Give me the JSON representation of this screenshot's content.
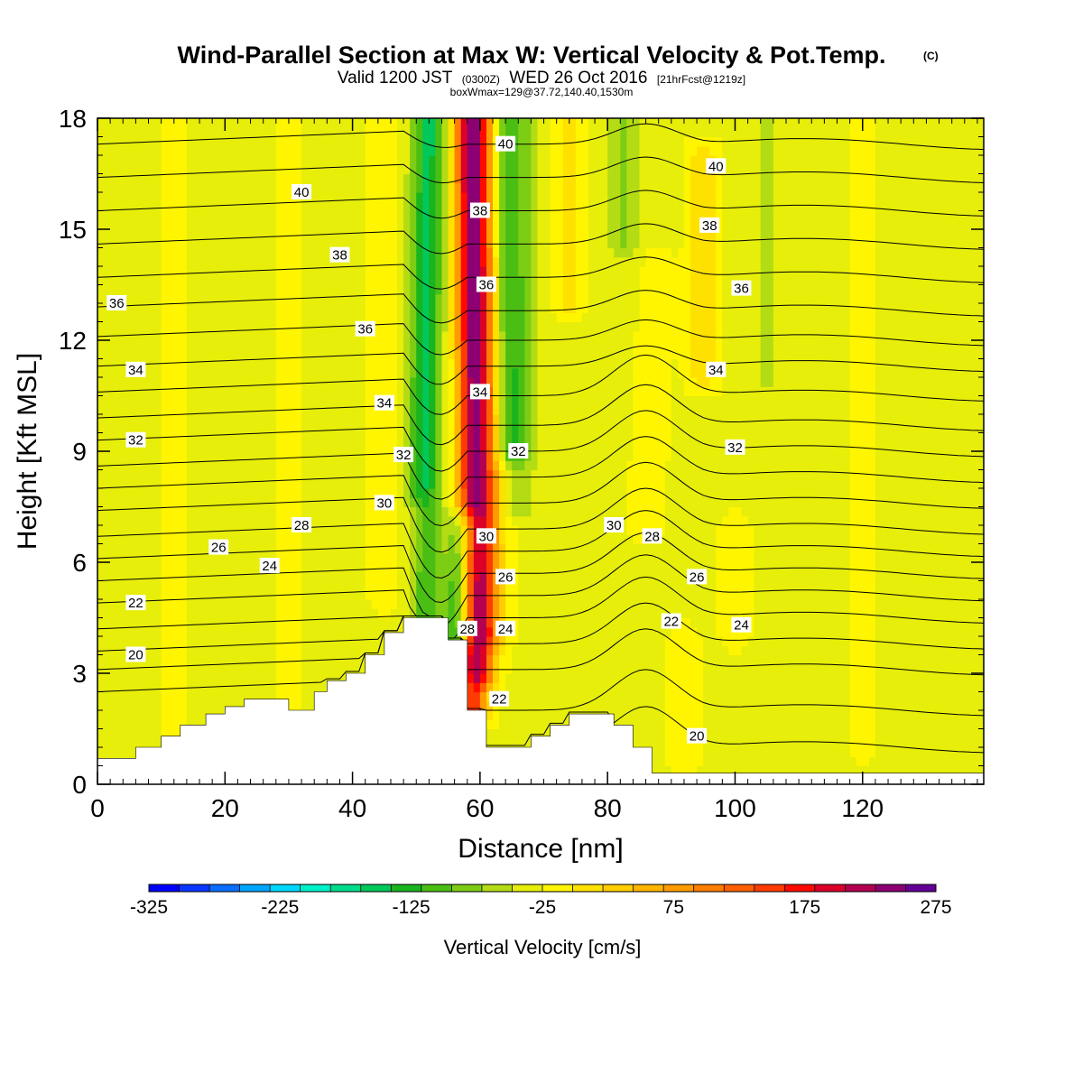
{
  "header": {
    "title": "Wind-Parallel Section at Max W: Vertical Velocity & Pot.Temp.",
    "copyright": "(C)",
    "valid_prefix": "Valid 1200 JST",
    "valid_utc": "(0300Z)",
    "valid_date": "WED 26 Oct 2016",
    "forecast": "[21hrFcst@1219z]",
    "box_info": "boxWmax=129@37.72,140.40,1530m"
  },
  "chart_data": {
    "type": "heatmap",
    "title": "Wind-Parallel Section at Max W: Vertical Velocity & Pot.Temp.",
    "xlabel": "Distance [nm]",
    "ylabel": "Height [Kft MSL]",
    "xlim": [
      0,
      139
    ],
    "ylim": [
      0,
      18
    ],
    "x_ticks": [
      0,
      20,
      40,
      60,
      80,
      100,
      120
    ],
    "y_ticks": [
      0,
      3,
      6,
      9,
      12,
      15,
      18
    ],
    "grid": false,
    "colorbar": {
      "title": "Vertical Velocity [cm/s]",
      "orientation": "horizontal",
      "tick_values": [
        -325,
        -225,
        -125,
        -25,
        75,
        175,
        275
      ],
      "min": -325,
      "max": 275,
      "step": 25,
      "colors": [
        "#0000ff",
        "#0a37ff",
        "#0a6eff",
        "#00a5ff",
        "#00d8ff",
        "#00f0c8",
        "#00dc8c",
        "#00c85a",
        "#19b41e",
        "#4bbe14",
        "#7dcd14",
        "#b4dc14",
        "#e6ee0a",
        "#fff500",
        "#ffe100",
        "#ffcd00",
        "#ffb400",
        "#ff9b00",
        "#ff7d00",
        "#ff5f00",
        "#ff3c00",
        "#ff0a00",
        "#dc0028",
        "#b40050",
        "#8c0073",
        "#640096"
      ]
    },
    "terrain": [
      [
        0,
        0.7
      ],
      [
        6,
        0.7
      ],
      [
        6,
        1.0
      ],
      [
        10,
        1.0
      ],
      [
        10,
        1.3
      ],
      [
        13,
        1.3
      ],
      [
        13,
        1.6
      ],
      [
        17,
        1.6
      ],
      [
        17,
        1.9
      ],
      [
        20,
        1.9
      ],
      [
        20,
        2.1
      ],
      [
        23,
        2.1
      ],
      [
        23,
        2.3
      ],
      [
        30,
        2.3
      ],
      [
        30,
        2.0
      ],
      [
        34,
        2.0
      ],
      [
        34,
        2.5
      ],
      [
        36,
        2.5
      ],
      [
        36,
        2.8
      ],
      [
        39,
        2.8
      ],
      [
        39,
        3.0
      ],
      [
        42,
        3.0
      ],
      [
        42,
        3.5
      ],
      [
        45,
        3.5
      ],
      [
        45,
        4.1
      ],
      [
        48,
        4.1
      ],
      [
        48,
        4.5
      ],
      [
        55,
        4.5
      ],
      [
        55,
        3.9
      ],
      [
        58,
        3.9
      ],
      [
        58,
        2.0
      ],
      [
        61,
        2.0
      ],
      [
        61,
        1.0
      ],
      [
        68,
        1.0
      ],
      [
        68,
        1.3
      ],
      [
        71,
        1.3
      ],
      [
        71,
        1.6
      ],
      [
        74,
        1.6
      ],
      [
        74,
        1.9
      ],
      [
        81,
        1.9
      ],
      [
        81,
        1.6
      ],
      [
        84,
        1.6
      ],
      [
        84,
        1.0
      ],
      [
        87,
        1.0
      ],
      [
        87,
        0.3
      ],
      [
        139,
        0.3
      ]
    ],
    "velocity_field": {
      "background": -5,
      "features": [
        {
          "x": 51.5,
          "x_top": 52.5,
          "y_min": 4.0,
          "y_max": 18,
          "value": -90
        },
        {
          "x": 50.0,
          "x_top": 51.0,
          "y_min": 8.0,
          "y_max": 18,
          "value": -50
        },
        {
          "x": 56.5,
          "x_top": 57.5,
          "y_min": 3.9,
          "y_max": 7.0,
          "value": -140
        },
        {
          "x": 59.0,
          "x_top": 58.0,
          "y_min": 2.0,
          "y_max": 18,
          "value": 190
        },
        {
          "x": 60.5,
          "x_top": 59.5,
          "y_min": 3.0,
          "y_max": 18,
          "value": 120
        },
        {
          "x": 62.0,
          "x_top": 61.0,
          "y_min": 4.0,
          "y_max": 18,
          "value": 65
        },
        {
          "x": 64.5,
          "x_top": 64.0,
          "y_min": 9.0,
          "y_max": 18,
          "value": -90
        },
        {
          "x": 66.5,
          "x_top": 67.5,
          "y_min": 7.5,
          "y_max": 18,
          "value": -40
        },
        {
          "x": 74.0,
          "x_top": 74.0,
          "y_min": 13.0,
          "y_max": 18,
          "value": 40
        },
        {
          "x": 82.5,
          "x_top": 82.5,
          "y_min": 14.5,
          "y_max": 18,
          "value": -50
        },
        {
          "x": 86.0,
          "x_top": 88.0,
          "y_min": 7.0,
          "y_max": 14.0,
          "value": 30
        },
        {
          "x": 95.0,
          "x_top": 95.0,
          "y_min": 11.0,
          "y_max": 17.0,
          "value": 50
        },
        {
          "x": 105.0,
          "x_top": 105.0,
          "y_min": 11.0,
          "y_max": 18,
          "value": -30
        },
        {
          "x": 100.0,
          "x_top": 100.0,
          "y_min": 4.0,
          "y_max": 7.0,
          "value": 20
        },
        {
          "x": 12.0,
          "x_top": 12.0,
          "y_min": 0.5,
          "y_max": 18,
          "value": 15
        },
        {
          "x": 30.0,
          "x_top": 30.0,
          "y_min": 0.5,
          "y_max": 18,
          "value": 15
        },
        {
          "x": 45.0,
          "x_top": 45.0,
          "y_min": 5.0,
          "y_max": 18,
          "value": 20
        },
        {
          "x": 92.0,
          "x_top": 92.0,
          "y_min": 0.5,
          "y_max": 4.0,
          "value": 20
        },
        {
          "x": 120.0,
          "x_top": 120.0,
          "y_min": 1.0,
          "y_max": 18,
          "value": 15
        }
      ]
    },
    "theta_contours": {
      "levels": [
        20,
        21,
        22,
        23,
        24,
        25,
        26,
        27,
        28,
        29,
        30,
        31,
        32,
        33,
        34,
        35,
        36,
        37,
        38,
        39,
        40,
        41
      ],
      "upstream_heights": [
        2.5,
        3.1,
        3.6,
        4.2,
        4.9,
        5.5,
        6.1,
        6.7,
        7.4,
        8.0,
        8.6,
        9.3,
        9.9,
        10.6,
        11.3,
        12.1,
        12.9,
        13.7,
        14.6,
        15.5,
        16.4,
        17.3
      ],
      "downstream_heights": [
        1.0,
        2.0,
        3.1,
        3.8,
        4.5,
        5.1,
        5.7,
        6.3,
        6.9,
        7.6,
        8.3,
        9.0,
        9.7,
        10.5,
        11.3,
        12.0,
        12.8,
        13.7,
        14.6,
        15.5,
        16.4,
        17.3
      ]
    },
    "contour_labels": [
      {
        "text": "40",
        "x": 32,
        "y": 16.0
      },
      {
        "text": "38",
        "x": 38,
        "y": 14.3
      },
      {
        "text": "36",
        "x": 3,
        "y": 13.0
      },
      {
        "text": "36",
        "x": 42,
        "y": 12.3
      },
      {
        "text": "34",
        "x": 6,
        "y": 11.2
      },
      {
        "text": "34",
        "x": 45,
        "y": 10.3
      },
      {
        "text": "32",
        "x": 6,
        "y": 9.3
      },
      {
        "text": "32",
        "x": 48,
        "y": 8.9
      },
      {
        "text": "30",
        "x": 45,
        "y": 7.6
      },
      {
        "text": "28",
        "x": 32,
        "y": 7.0
      },
      {
        "text": "26",
        "x": 19,
        "y": 6.4
      },
      {
        "text": "24",
        "x": 27,
        "y": 5.9
      },
      {
        "text": "22",
        "x": 6,
        "y": 4.9
      },
      {
        "text": "20",
        "x": 6,
        "y": 3.5
      },
      {
        "text": "40",
        "x": 64,
        "y": 17.3
      },
      {
        "text": "38",
        "x": 60,
        "y": 15.5
      },
      {
        "text": "36",
        "x": 61,
        "y": 13.5
      },
      {
        "text": "34",
        "x": 60,
        "y": 10.6
      },
      {
        "text": "32",
        "x": 66,
        "y": 9.0
      },
      {
        "text": "30",
        "x": 61,
        "y": 6.7
      },
      {
        "text": "28",
        "x": 58,
        "y": 4.2
      },
      {
        "text": "26",
        "x": 64,
        "y": 5.6
      },
      {
        "text": "24",
        "x": 64,
        "y": 4.2
      },
      {
        "text": "22",
        "x": 63,
        "y": 2.3
      },
      {
        "text": "40",
        "x": 97,
        "y": 16.7
      },
      {
        "text": "38",
        "x": 96,
        "y": 15.1
      },
      {
        "text": "36",
        "x": 101,
        "y": 13.4
      },
      {
        "text": "34",
        "x": 97,
        "y": 11.2
      },
      {
        "text": "32",
        "x": 100,
        "y": 9.1
      },
      {
        "text": "30",
        "x": 81,
        "y": 7.0
      },
      {
        "text": "28",
        "x": 87,
        "y": 6.7
      },
      {
        "text": "26",
        "x": 94,
        "y": 5.6
      },
      {
        "text": "24",
        "x": 101,
        "y": 4.3
      },
      {
        "text": "22",
        "x": 90,
        "y": 4.4
      },
      {
        "text": "20",
        "x": 94,
        "y": 1.3
      }
    ]
  }
}
